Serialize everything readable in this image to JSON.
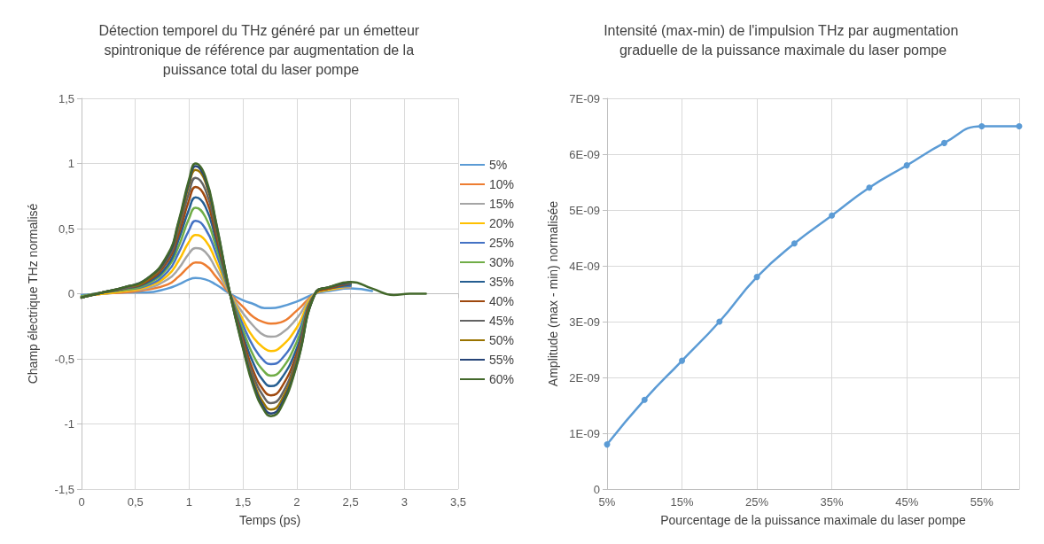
{
  "chart_data": [
    {
      "type": "line",
      "title": "Détection temporel du THz généré par un émetteur spintronique de référence par augmentation de la puissance total du laser pompe",
      "xlabel": "Temps (ps)",
      "ylabel": "Champ électrique THz normalisé",
      "x": [
        0,
        0.2,
        0.4,
        0.6,
        0.8,
        0.9,
        1.0,
        1.06,
        1.15,
        1.25,
        1.38,
        1.5,
        1.6,
        1.7,
        1.76,
        1.85,
        2.0,
        2.17,
        2.3,
        2.5,
        2.7,
        2.9,
        3.05,
        3.2
      ],
      "xlim": [
        0,
        3.5
      ],
      "xticks": [
        0,
        {
          "value": 0.5,
          "label": "0,5"
        },
        1,
        {
          "value": 1.5,
          "label": "1,5"
        },
        2,
        {
          "value": 2.5,
          "label": "2,5"
        },
        3,
        {
          "value": 3.5,
          "label": "3,5"
        }
      ],
      "ylim": [
        -1.5,
        1.5
      ],
      "yticks": [
        {
          "value": -1.5,
          "label": "-1,5"
        },
        -1,
        {
          "value": -0.5,
          "label": "-0,5"
        },
        0,
        {
          "value": 0.5,
          "label": "0,5"
        },
        1,
        {
          "value": 1.5,
          "label": "1,5"
        }
      ],
      "grid": true,
      "legend": "right",
      "marker": "none",
      "series": [
        {
          "name": "5%",
          "color": "#5b9bd5",
          "values": [
            -0.01,
            0.0,
            0.01,
            0.01,
            0.04,
            0.07,
            0.11,
            0.12,
            0.11,
            0.07,
            0,
            -0.05,
            -0.08,
            -0.11,
            -0.11,
            -0.1,
            -0.06,
            0,
            0.02,
            0.04,
            0.02,
            null,
            null,
            null
          ]
        },
        {
          "name": "10%",
          "color": "#ed7d31",
          "values": [
            -0.02,
            0.0,
            0.01,
            0.03,
            0.07,
            0.13,
            0.21,
            0.24,
            0.22,
            0.13,
            0,
            -0.1,
            -0.18,
            -0.22,
            -0.23,
            -0.22,
            -0.13,
            0,
            0.03,
            0.05,
            null,
            null,
            null,
            null
          ]
        },
        {
          "name": "15%",
          "color": "#a5a5a5",
          "values": [
            -0.02,
            0.0,
            0.02,
            0.04,
            0.11,
            0.19,
            0.31,
            0.35,
            0.32,
            0.19,
            0,
            -0.15,
            -0.25,
            -0.32,
            -0.33,
            -0.31,
            -0.19,
            0,
            0.03,
            0.05,
            null,
            null,
            null,
            null
          ]
        },
        {
          "name": "20%",
          "color": "#ffc000",
          "values": [
            -0.02,
            0.0,
            0.02,
            0.05,
            0.14,
            0.25,
            0.4,
            0.45,
            0.41,
            0.25,
            0,
            -0.2,
            -0.34,
            -0.42,
            -0.44,
            -0.41,
            -0.26,
            0,
            0.03,
            0.06,
            null,
            null,
            null,
            null
          ]
        },
        {
          "name": "25%",
          "color": "#4472c4",
          "values": [
            -0.02,
            0.01,
            0.03,
            0.06,
            0.17,
            0.31,
            0.49,
            0.56,
            0.5,
            0.31,
            0,
            -0.24,
            -0.41,
            -0.52,
            -0.54,
            -0.51,
            -0.32,
            0,
            0.04,
            0.06,
            null,
            null,
            null,
            null
          ]
        },
        {
          "name": "30%",
          "color": "#70ad47",
          "values": [
            -0.02,
            0.01,
            0.03,
            0.07,
            0.2,
            0.36,
            0.58,
            0.66,
            0.59,
            0.36,
            0,
            -0.28,
            -0.48,
            -0.6,
            -0.63,
            -0.59,
            -0.37,
            0,
            0.04,
            0.07,
            null,
            null,
            null,
            null
          ]
        },
        {
          "name": "35%",
          "color": "#255e91",
          "values": [
            -0.03,
            0.01,
            0.04,
            0.08,
            0.22,
            0.41,
            0.65,
            0.74,
            0.67,
            0.41,
            0,
            -0.32,
            -0.54,
            -0.68,
            -0.71,
            -0.66,
            -0.42,
            0,
            0.04,
            0.07,
            null,
            null,
            null,
            null
          ]
        },
        {
          "name": "40%",
          "color": "#9e480e",
          "values": [
            -0.03,
            0.01,
            0.04,
            0.09,
            0.25,
            0.45,
            0.72,
            0.82,
            0.74,
            0.45,
            0,
            -0.35,
            -0.6,
            -0.75,
            -0.78,
            -0.73,
            -0.46,
            0,
            0.04,
            0.08,
            null,
            null,
            null,
            null
          ]
        },
        {
          "name": "45%",
          "color": "#636363",
          "values": [
            -0.03,
            0.01,
            0.04,
            0.1,
            0.27,
            0.49,
            0.78,
            0.89,
            0.8,
            0.49,
            0,
            -0.38,
            -0.64,
            -0.8,
            -0.84,
            -0.79,
            -0.49,
            0,
            0.05,
            0.08,
            null,
            null,
            null,
            null
          ]
        },
        {
          "name": "50%",
          "color": "#997300",
          "values": [
            -0.03,
            0.01,
            0.05,
            0.1,
            0.29,
            0.52,
            0.84,
            0.95,
            0.86,
            0.52,
            0,
            -0.4,
            -0.68,
            -0.85,
            -0.89,
            -0.83,
            -0.52,
            0,
            0.05,
            0.09,
            null,
            null,
            null,
            null
          ]
        },
        {
          "name": "55%",
          "color": "#264478",
          "values": [
            -0.03,
            0.01,
            0.05,
            0.11,
            0.29,
            0.54,
            0.86,
            0.98,
            0.88,
            0.54,
            0,
            -0.41,
            -0.7,
            -0.88,
            -0.92,
            -0.86,
            -0.54,
            0,
            0.05,
            0.09,
            null,
            null,
            null,
            null
          ]
        },
        {
          "name": "60%",
          "color": "#43682b",
          "values": [
            -0.03,
            0.01,
            0.05,
            0.11,
            0.3,
            0.55,
            0.88,
            1.0,
            0.9,
            0.55,
            0,
            -0.42,
            -0.72,
            -0.9,
            -0.94,
            -0.88,
            -0.55,
            0,
            0.05,
            0.09,
            0.04,
            -0.01,
            0,
            0
          ]
        }
      ]
    },
    {
      "type": "line",
      "title": "Intensité (max-min) de l'impulsion THz par augmentation graduelle de la puissance maximale du laser pompe",
      "xlabel": "Pourcentage de la puissance maximale du laser pompe",
      "ylabel": "Amplitude (max - min) normalisée",
      "categories": [
        "5%",
        null,
        "15%",
        null,
        "25%",
        null,
        "35%",
        null,
        "45%",
        null,
        "55%",
        null
      ],
      "ylim": [
        0,
        7e-09
      ],
      "yticks": [
        0,
        {
          "value": 1e-09,
          "label": "1E-09"
        },
        {
          "value": 2e-09,
          "label": "2E-09"
        },
        {
          "value": 3e-09,
          "label": "3E-09"
        },
        {
          "value": 4e-09,
          "label": "4E-09"
        },
        {
          "value": 5e-09,
          "label": "5E-09"
        },
        {
          "value": 6e-09,
          "label": "6E-09"
        },
        {
          "value": 7e-09,
          "label": "7E-09"
        }
      ],
      "grid": true,
      "legend": false,
      "marker": "circle",
      "series": [
        {
          "color": "#5b9bd5",
          "values": [
            8e-10,
            1.6e-09,
            2.3e-09,
            3e-09,
            3.8e-09,
            4.4e-09,
            4.9e-09,
            5.4e-09,
            5.8e-09,
            6.2e-09,
            6.5e-09,
            6.5e-09
          ]
        }
      ]
    }
  ]
}
